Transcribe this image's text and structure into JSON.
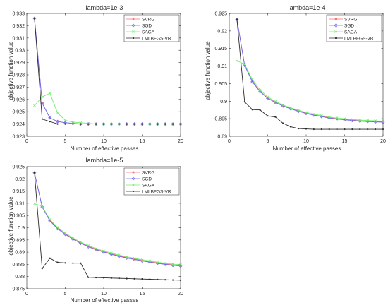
{
  "chart_data": [
    {
      "type": "line",
      "title": "lambda=1e-3",
      "xlabel": "Number of effective passes",
      "ylabel": "objective function value",
      "xlim": [
        0,
        20
      ],
      "ylim": [
        0.923,
        0.933
      ],
      "xticks": [
        0,
        5,
        10,
        15,
        20
      ],
      "yticks": [
        0.923,
        0.924,
        0.925,
        0.926,
        0.927,
        0.928,
        0.929,
        0.93,
        0.931,
        0.932,
        0.933
      ],
      "ytick_labels": [
        "0.923",
        "0.924",
        "0.925",
        "0.926",
        "0.927",
        "0.928",
        "0.929",
        "0.93",
        "0.931",
        "0.932",
        "0.933"
      ],
      "grid": false,
      "legend": "top-right",
      "x": [
        1,
        2,
        3,
        4,
        5,
        6,
        7,
        8,
        9,
        10,
        11,
        12,
        13,
        14,
        15,
        16,
        17,
        18,
        19,
        20
      ],
      "series": [
        {
          "name": "SVRG",
          "values": [
            0.9326,
            0.9257,
            0.9245,
            0.9242,
            0.9241,
            0.92405,
            0.924,
            0.924,
            0.924,
            0.924,
            0.924,
            0.924,
            0.924,
            0.924,
            0.924,
            0.924,
            0.924,
            0.924,
            0.924,
            0.924
          ]
        },
        {
          "name": "SGD",
          "values": [
            0.9326,
            0.9257,
            0.9245,
            0.9242,
            0.9241,
            0.92405,
            0.924,
            0.924,
            0.924,
            0.924,
            0.924,
            0.924,
            0.924,
            0.924,
            0.924,
            0.924,
            0.924,
            0.924,
            0.924,
            0.924
          ]
        },
        {
          "name": "SAGA",
          "values": [
            0.9255,
            0.9262,
            0.9265,
            0.9249,
            0.9243,
            0.92415,
            0.9241,
            0.92405,
            0.924,
            0.924,
            0.924,
            0.924,
            0.924,
            0.924,
            0.924,
            0.924,
            0.924,
            0.924,
            0.924,
            0.924
          ]
        },
        {
          "name": "LMLBFGS-VR",
          "values": [
            0.9326,
            0.9244,
            0.9242,
            0.924,
            0.924,
            0.924,
            0.924,
            0.924,
            0.924,
            0.924,
            0.924,
            0.924,
            0.924,
            0.924,
            0.924,
            0.924,
            0.924,
            0.924,
            0.924,
            0.924
          ]
        }
      ]
    },
    {
      "type": "line",
      "title": "lambda=1e-4",
      "xlabel": "Number of effective passes",
      "ylabel": "objective function value",
      "xlim": [
        0,
        20
      ],
      "ylim": [
        0.89,
        0.925
      ],
      "xticks": [
        0,
        5,
        10,
        15,
        20
      ],
      "yticks": [
        0.89,
        0.895,
        0.9,
        0.905,
        0.91,
        0.915,
        0.92,
        0.925
      ],
      "ytick_labels": [
        "0.89",
        "0.895",
        "0.9",
        "0.905",
        "0.91",
        "0.915",
        "0.92",
        "0.925"
      ],
      "grid": false,
      "legend": "top-right",
      "x": [
        1,
        2,
        3,
        4,
        5,
        6,
        7,
        8,
        9,
        10,
        11,
        12,
        13,
        14,
        15,
        16,
        17,
        18,
        19,
        20
      ],
      "series": [
        {
          "name": "SVRG",
          "values": [
            0.9233,
            0.9102,
            0.9057,
            0.9028,
            0.9009,
            0.8997,
            0.8987,
            0.8979,
            0.8972,
            0.8966,
            0.8961,
            0.8957,
            0.8953,
            0.895,
            0.8948,
            0.8946,
            0.8944,
            0.8943,
            0.8942,
            0.8941
          ]
        },
        {
          "name": "SGD",
          "values": [
            0.9233,
            0.9102,
            0.9055,
            0.9027,
            0.9008,
            0.8996,
            0.8986,
            0.8978,
            0.8971,
            0.8965,
            0.896,
            0.8956,
            0.8952,
            0.8949,
            0.8947,
            0.8945,
            0.8943,
            0.8942,
            0.8941,
            0.894
          ]
        },
        {
          "name": "SAGA",
          "values": [
            0.9115,
            0.9105,
            0.9062,
            0.9032,
            0.9012,
            0.8999,
            0.8989,
            0.8981,
            0.8974,
            0.8968,
            0.8963,
            0.8959,
            0.8955,
            0.8952,
            0.895,
            0.8948,
            0.8946,
            0.8945,
            0.8944,
            0.8943
          ]
        },
        {
          "name": "LMLBFGS-VR",
          "values": [
            0.9233,
            0.8998,
            0.8976,
            0.8975,
            0.8958,
            0.8955,
            0.8937,
            0.8927,
            0.8922,
            0.8921,
            0.892,
            0.892,
            0.892,
            0.892,
            0.892,
            0.892,
            0.892,
            0.892,
            0.892,
            0.892
          ]
        }
      ]
    },
    {
      "type": "line",
      "title": "lambda=1e-5",
      "xlabel": "Number of effective passes",
      "ylabel": "objective function value",
      "xlim": [
        0,
        20
      ],
      "ylim": [
        0.875,
        0.925
      ],
      "xticks": [
        0,
        5,
        10,
        15,
        20
      ],
      "yticks": [
        0.875,
        0.88,
        0.885,
        0.89,
        0.895,
        0.9,
        0.905,
        0.91,
        0.915,
        0.92,
        0.925
      ],
      "ytick_labels": [
        "0.875",
        "0.88",
        "0.885",
        "0.89",
        "0.895",
        "0.9",
        "0.905",
        "0.91",
        "0.915",
        "0.92",
        "0.925"
      ],
      "grid": false,
      "legend": "top-right",
      "x": [
        1,
        2,
        3,
        4,
        5,
        6,
        7,
        8,
        9,
        10,
        11,
        12,
        13,
        14,
        15,
        16,
        17,
        18,
        19,
        20
      ],
      "series": [
        {
          "name": "SVRG",
          "values": [
            0.9225,
            0.9085,
            0.903,
            0.8998,
            0.8975,
            0.8955,
            0.8938,
            0.8924,
            0.8912,
            0.8902,
            0.8893,
            0.8885,
            0.8878,
            0.8872,
            0.8866,
            0.8861,
            0.8856,
            0.8852,
            0.8848,
            0.8845
          ]
        },
        {
          "name": "SGD",
          "values": [
            0.9225,
            0.9085,
            0.9028,
            0.8996,
            0.8973,
            0.8953,
            0.8936,
            0.8922,
            0.891,
            0.89,
            0.8891,
            0.8883,
            0.8876,
            0.887,
            0.8864,
            0.8859,
            0.8854,
            0.885,
            0.8846,
            0.8843
          ]
        },
        {
          "name": "SAGA",
          "values": [
            0.9098,
            0.9088,
            0.9034,
            0.9001,
            0.8978,
            0.8958,
            0.8941,
            0.8927,
            0.8915,
            0.8905,
            0.8896,
            0.8888,
            0.8881,
            0.8875,
            0.8869,
            0.8864,
            0.8859,
            0.8855,
            0.8851,
            0.8848
          ]
        },
        {
          "name": "LMLBFGS-VR",
          "values": [
            0.9225,
            0.8833,
            0.8875,
            0.8858,
            0.8856,
            0.8855,
            0.8855,
            0.8797,
            0.8796,
            0.8795,
            0.8794,
            0.8793,
            0.8792,
            0.8791,
            0.879,
            0.8789,
            0.8788,
            0.8787,
            0.8786,
            0.8785
          ]
        }
      ]
    }
  ],
  "series_colors": {
    "SVRG": "#ff6b6b",
    "SGD": "#6b6bf2",
    "SAGA": "#6cf06c",
    "LMLBFGS-VR": "#2b2b2b"
  },
  "series_markers": {
    "SVRG": "star",
    "SGD": "diamond",
    "SAGA": "x",
    "LMLBFGS-VR": "dot"
  }
}
